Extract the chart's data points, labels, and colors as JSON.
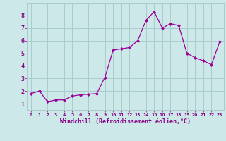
{
  "x": [
    0,
    1,
    2,
    3,
    4,
    5,
    6,
    7,
    8,
    9,
    10,
    11,
    12,
    13,
    14,
    15,
    16,
    17,
    18,
    19,
    20,
    21,
    22,
    23
  ],
  "y": [
    1.8,
    2.0,
    1.15,
    1.3,
    1.3,
    1.6,
    1.7,
    1.75,
    1.8,
    3.1,
    5.25,
    5.35,
    5.45,
    6.0,
    7.6,
    8.3,
    7.0,
    7.35,
    7.2,
    5.0,
    4.65,
    4.4,
    4.1,
    5.9
  ],
  "line_color": "#990099",
  "marker": "D",
  "marker_size": 2.0,
  "bg_color": "#cce8e8",
  "grid_color": "#aacccc",
  "xlabel": "Windchill (Refroidissement éolien,°C)",
  "xlabel_color": "#880088",
  "tick_color": "#880088",
  "ylim": [
    0.5,
    9.0
  ],
  "xlim": [
    -0.5,
    23.5
  ],
  "yticks": [
    1,
    2,
    3,
    4,
    5,
    6,
    7,
    8
  ],
  "xticks": [
    0,
    1,
    2,
    3,
    4,
    5,
    6,
    7,
    8,
    9,
    10,
    11,
    12,
    13,
    14,
    15,
    16,
    17,
    18,
    19,
    20,
    21,
    22,
    23
  ],
  "tick_fontsize": 5.0,
  "ytick_fontsize": 6.0,
  "xlabel_fontsize": 6.0
}
